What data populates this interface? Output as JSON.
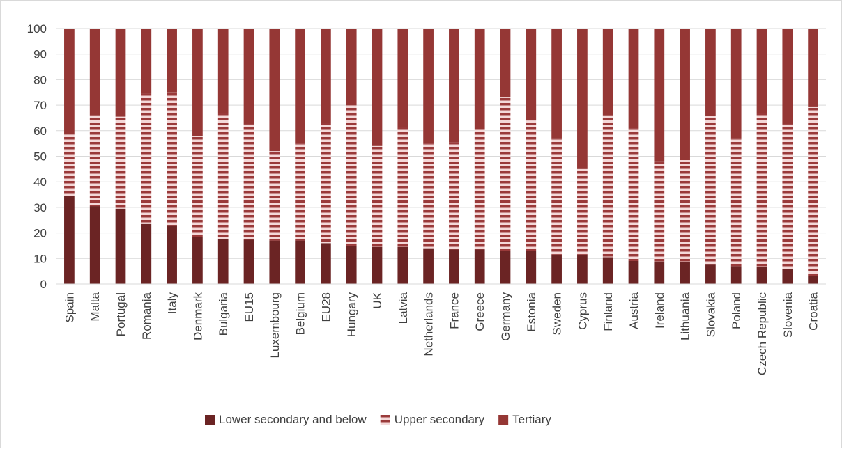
{
  "chart_data": {
    "type": "bar",
    "stacked": true,
    "categories": [
      "Spain",
      "Malta",
      "Portugal",
      "Romania",
      "Italy",
      "Denmark",
      "Bulgaria",
      "EU15",
      "Luxembourg",
      "Belgium",
      "EU28",
      "Hungary",
      "UK",
      "Latvia",
      "Netherlands",
      "France",
      "Greece",
      "Germany",
      "Estonia",
      "Sweden",
      "Cyprus",
      "Finland",
      "Austria",
      "Ireland",
      "Lithuania",
      "Slovakia",
      "Poland",
      "Czech Republic",
      "Slovenia",
      "Croatia"
    ],
    "series": [
      {
        "name": "Lower secondary and below",
        "color": "#6b2424",
        "values": [
          34.5,
          30.5,
          29.5,
          23.5,
          23,
          18.5,
          17.5,
          17.3,
          17,
          17,
          16,
          15,
          14.5,
          14.5,
          14,
          13.5,
          13.5,
          13,
          13,
          11.5,
          11.5,
          10.5,
          9,
          8.8,
          8.5,
          7.8,
          7,
          6.8,
          6,
          3
        ]
      },
      {
        "name": "Upper secondary",
        "color": "#9a3a3a",
        "pattern": "striped",
        "values": [
          24,
          35.5,
          36,
          51,
          52,
          39.5,
          49.5,
          45.2,
          35,
          38,
          47,
          55,
          39.5,
          47,
          41,
          42,
          47,
          60,
          51,
          45.5,
          33.5,
          55.5,
          52,
          39.2,
          40,
          58,
          50,
          60.2,
          56.5,
          66.5
        ]
      },
      {
        "name": "Tertiary",
        "color": "#953735",
        "values": [
          41.5,
          34,
          34.5,
          25.5,
          25,
          42,
          33,
          37.5,
          48,
          45,
          37,
          30,
          46,
          38.5,
          45,
          44.5,
          39.5,
          27,
          36,
          43,
          55,
          34,
          39,
          52,
          51.5,
          34.2,
          43,
          33,
          37.5,
          30.5
        ]
      }
    ],
    "ylim": [
      0,
      100
    ],
    "yticks": [
      "0",
      "10",
      "20",
      "30",
      "40",
      "50",
      "60",
      "70",
      "80",
      "90",
      "100"
    ],
    "grid": true,
    "legend_position": "bottom",
    "title": "",
    "xlabel": "",
    "ylabel": ""
  }
}
